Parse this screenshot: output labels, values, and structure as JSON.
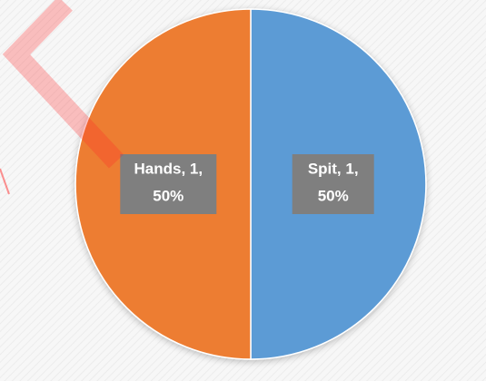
{
  "chart_data": {
    "type": "pie",
    "categories": [
      "Spit",
      "Hands"
    ],
    "values": [
      1,
      1
    ],
    "value_labels": [
      [
        "Spit, 1,",
        "50%"
      ],
      [
        "Hands, 1,",
        "50%"
      ]
    ],
    "colors": [
      "#5b9bd5",
      "#ed7d31"
    ]
  }
}
